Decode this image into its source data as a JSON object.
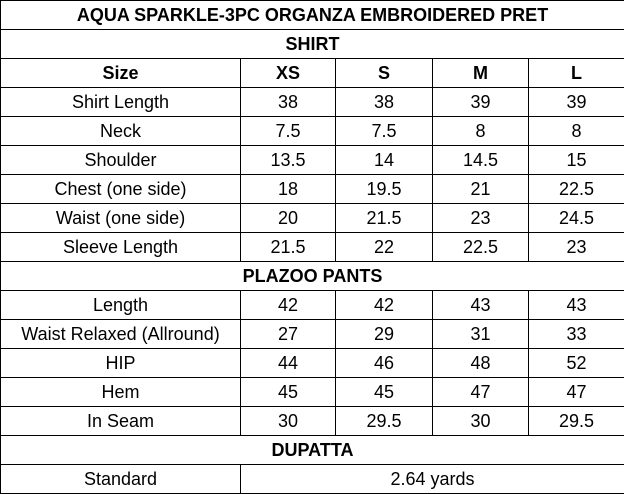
{
  "title": "AQUA SPARKLE-3PC ORGANZA EMBROIDERED PRET",
  "columns": [
    "Size",
    "XS",
    "S",
    "M",
    "L"
  ],
  "sections": {
    "shirt": {
      "heading": "SHIRT",
      "rows": [
        {
          "label": "Shirt Length",
          "values": [
            "38",
            "38",
            "39",
            "39"
          ]
        },
        {
          "label": "Neck",
          "values": [
            "7.5",
            "7.5",
            "8",
            "8"
          ]
        },
        {
          "label": "Shoulder",
          "values": [
            "13.5",
            "14",
            "14.5",
            "15"
          ]
        },
        {
          "label": "Chest (one side)",
          "values": [
            "18",
            "19.5",
            "21",
            "22.5"
          ]
        },
        {
          "label": "Waist (one side)",
          "values": [
            "20",
            "21.5",
            "23",
            "24.5"
          ]
        },
        {
          "label": "Sleeve Length",
          "values": [
            "21.5",
            "22",
            "22.5",
            "23"
          ]
        }
      ]
    },
    "plazoo": {
      "heading": "PLAZOO PANTS",
      "rows": [
        {
          "label": "Length",
          "values": [
            "42",
            "42",
            "43",
            "43"
          ]
        },
        {
          "label": "Waist Relaxed (Allround)",
          "values": [
            "27",
            "29",
            "31",
            "33"
          ]
        },
        {
          "label": "HIP",
          "values": [
            "44",
            "46",
            "48",
            "52"
          ]
        },
        {
          "label": "Hem",
          "values": [
            "45",
            "45",
            "47",
            "47"
          ]
        },
        {
          "label": "In Seam",
          "values": [
            "30",
            "29.5",
            "30",
            "29.5"
          ]
        }
      ]
    },
    "dupatta": {
      "heading": "DUPATTA",
      "rows": [
        {
          "label": "Standard",
          "value": "2.64 yards"
        }
      ]
    }
  }
}
